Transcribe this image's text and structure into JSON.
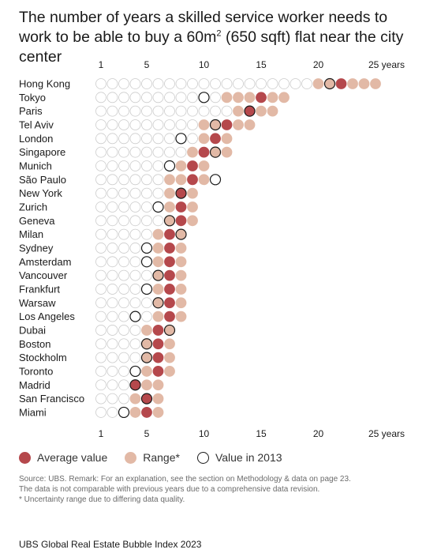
{
  "title": {
    "pre": "The number of years a skilled service worker needs to work to be able to buy a 60m",
    "sup": "2",
    "post": " (650 sqft) flat near the city center"
  },
  "colors": {
    "average": "#b5484c",
    "range": "#e2b9a6",
    "empty_stroke": "#cccccc",
    "marker_stroke": "#1a1a1a"
  },
  "legend": {
    "average": "Average value",
    "range": "Range*",
    "value2013": "Value in 2013"
  },
  "notes": {
    "line1": "Source: UBS. Remark: For an explanation, see the section on Methodology & data on page 23.",
    "line2": "The data is not comparable with previous years due to a comprehensive data revision.",
    "line3": "* Uncertainty range due to differing data quality."
  },
  "footer": "UBS Global Real Estate Bubble Index 2023",
  "chart_data": {
    "type": "scatter",
    "xlim": [
      1,
      25
    ],
    "xticks": [
      1,
      5,
      10,
      15,
      20,
      25
    ],
    "xtick_labels": [
      "1",
      "5",
      "10",
      "15",
      "20",
      "25 years"
    ],
    "cities": [
      {
        "name": "Hong Kong",
        "range": [
          20,
          25
        ],
        "avg": 22,
        "v2013": 21
      },
      {
        "name": "Tokyo",
        "range": [
          12,
          17
        ],
        "avg": 15,
        "v2013": 10
      },
      {
        "name": "Paris",
        "range": [
          13,
          16
        ],
        "avg": 14,
        "v2013": 14
      },
      {
        "name": "Tel Aviv",
        "range": [
          10,
          14
        ],
        "avg": 12,
        "v2013": 11
      },
      {
        "name": "London",
        "range": [
          10,
          12
        ],
        "avg": 11,
        "v2013": 8
      },
      {
        "name": "Singapore",
        "range": [
          9,
          12
        ],
        "avg": 10,
        "v2013": 11
      },
      {
        "name": "Munich",
        "range": [
          8,
          10
        ],
        "avg": 9,
        "v2013": 7
      },
      {
        "name": "São Paulo",
        "range": [
          7,
          10
        ],
        "avg": 9,
        "v2013": 11
      },
      {
        "name": "New York",
        "range": [
          7,
          9
        ],
        "avg": 8,
        "v2013": 8
      },
      {
        "name": "Zurich",
        "range": [
          7,
          9
        ],
        "avg": 8,
        "v2013": 6
      },
      {
        "name": "Geneva",
        "range": [
          7,
          9
        ],
        "avg": 8,
        "v2013": 7
      },
      {
        "name": "Milan",
        "range": [
          6,
          8
        ],
        "avg": 7,
        "v2013": 8
      },
      {
        "name": "Sydney",
        "range": [
          6,
          8
        ],
        "avg": 7,
        "v2013": 5
      },
      {
        "name": "Amsterdam",
        "range": [
          6,
          8
        ],
        "avg": 7,
        "v2013": 5
      },
      {
        "name": "Vancouver",
        "range": [
          6,
          8
        ],
        "avg": 7,
        "v2013": 6
      },
      {
        "name": "Frankfurt",
        "range": [
          6,
          8
        ],
        "avg": 7,
        "v2013": 5
      },
      {
        "name": "Warsaw",
        "range": [
          6,
          8
        ],
        "avg": 7,
        "v2013": 6
      },
      {
        "name": "Los Angeles",
        "range": [
          6,
          8
        ],
        "avg": 7,
        "v2013": 4
      },
      {
        "name": "Dubai",
        "range": [
          5,
          7
        ],
        "avg": 6,
        "v2013": 7
      },
      {
        "name": "Boston",
        "range": [
          5,
          7
        ],
        "avg": 6,
        "v2013": 5
      },
      {
        "name": "Stockholm",
        "range": [
          5,
          7
        ],
        "avg": 6,
        "v2013": 5
      },
      {
        "name": "Toronto",
        "range": [
          5,
          7
        ],
        "avg": 6,
        "v2013": 4
      },
      {
        "name": "Madrid",
        "range": [
          4,
          6
        ],
        "avg": 4,
        "v2013": 4
      },
      {
        "name": "San Francisco",
        "range": [
          4,
          6
        ],
        "avg": 5,
        "v2013": 5
      },
      {
        "name": "Miami",
        "range": [
          4,
          6
        ],
        "avg": 5,
        "v2013": 3
      }
    ]
  }
}
